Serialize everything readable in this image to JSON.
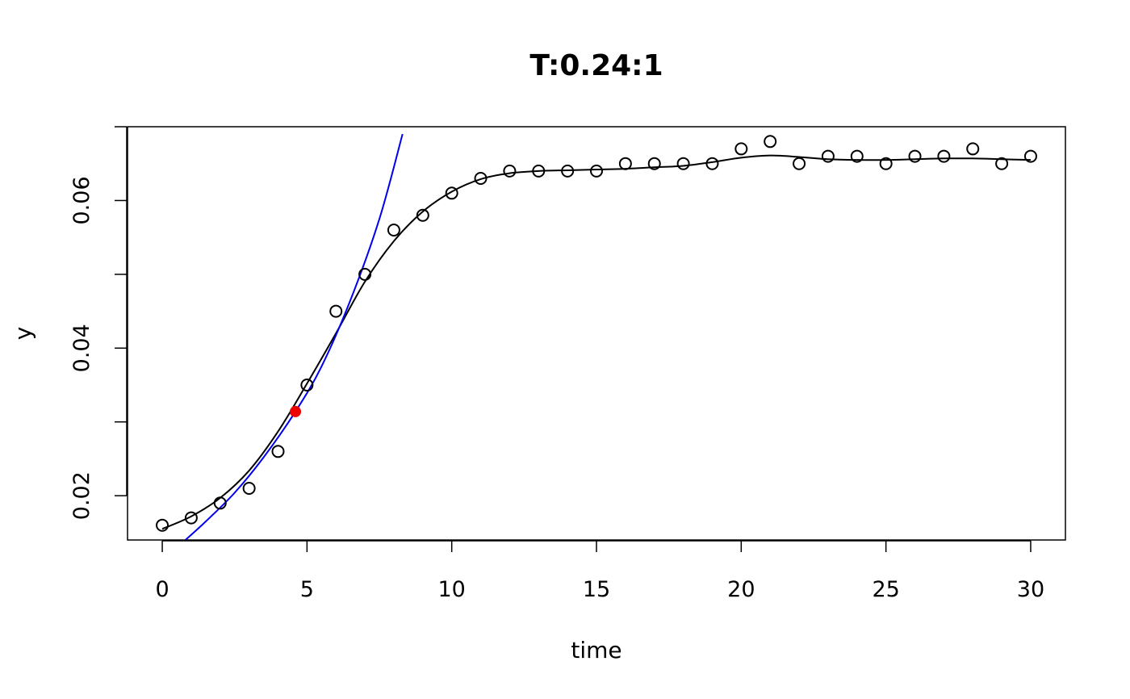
{
  "chart_data": {
    "type": "scatter",
    "title": "T:0.24:1",
    "xlabel": "time",
    "ylabel": "y",
    "xlim": [
      -1.2,
      31.2
    ],
    "ylim": [
      0.014,
      0.07
    ],
    "x_ticks": [
      0,
      5,
      10,
      15,
      20,
      25,
      30
    ],
    "y_ticks": [
      0.02,
      0.03,
      0.04,
      0.05,
      0.06,
      0.07
    ],
    "y_tick_labels": [
      "0.02",
      "",
      "0.04",
      "",
      "0.06",
      ""
    ],
    "grid": false,
    "legend": "none",
    "series": [
      {
        "kind": "points",
        "color": "#000000",
        "x": [
          0,
          1,
          2,
          3,
          4,
          5,
          6,
          7,
          8,
          9,
          10,
          11,
          12,
          13,
          14,
          15,
          16,
          17,
          18,
          19,
          20,
          21,
          22,
          23,
          24,
          25,
          26,
          27,
          28,
          29,
          30
        ],
        "y": [
          0.016,
          0.017,
          0.019,
          0.021,
          0.026,
          0.035,
          0.045,
          0.05,
          0.056,
          0.058,
          0.061,
          0.063,
          0.064,
          0.064,
          0.064,
          0.064,
          0.065,
          0.065,
          0.065,
          0.065,
          0.067,
          0.068,
          0.065,
          0.066,
          0.066,
          0.065,
          0.066,
          0.066,
          0.067,
          0.065,
          0.066
        ]
      },
      {
        "kind": "smooth-fit",
        "color": "#000000",
        "x": [
          0,
          1,
          2,
          3,
          4,
          5,
          6,
          7,
          8,
          9,
          10,
          11,
          12,
          13,
          14,
          15,
          16,
          17,
          18,
          19,
          20,
          21,
          22,
          23,
          24,
          25,
          26,
          27,
          28,
          29,
          30
        ],
        "y": [
          0.0155,
          0.0172,
          0.0197,
          0.0234,
          0.0287,
          0.0352,
          0.042,
          0.049,
          0.0545,
          0.0585,
          0.0612,
          0.0629,
          0.0637,
          0.064,
          0.0641,
          0.0642,
          0.0643,
          0.0645,
          0.0647,
          0.0652,
          0.0658,
          0.0661,
          0.0659,
          0.0656,
          0.0655,
          0.0655,
          0.0656,
          0.0657,
          0.0657,
          0.0656,
          0.0655
        ]
      },
      {
        "kind": "exponential-tangent",
        "color": "#0000ee",
        "x": [
          0.8,
          1.5,
          2.5,
          3.5,
          4.6,
          5.5,
          6.5,
          7.5,
          8.3
        ],
        "y": [
          0.014,
          0.0165,
          0.0204,
          0.0252,
          0.0314,
          0.0375,
          0.0465,
          0.0575,
          0.069
        ]
      },
      {
        "kind": "highlight-point",
        "color": "#ee0000",
        "x": [
          4.6
        ],
        "y": [
          0.0314
        ]
      }
    ]
  }
}
